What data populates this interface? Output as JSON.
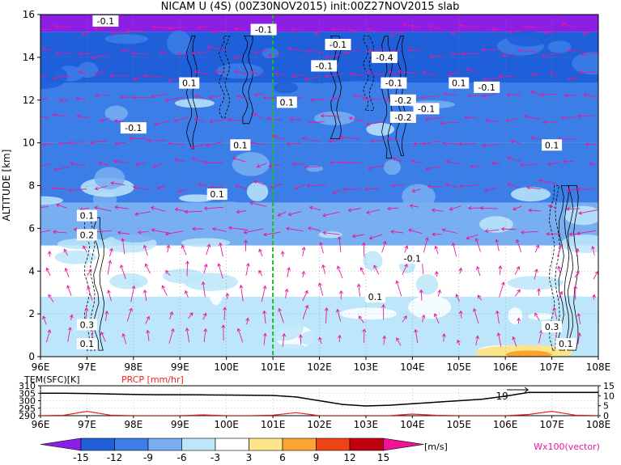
{
  "title": "NICAM U (4S) (00Z30NOV2015) init:00Z27NOV2015 slab",
  "colors": {
    "purple": "#8c1ee6",
    "blue_dark": "#1f5fd9",
    "blue_mid": "#3c7ee8",
    "blue_light": "#78aef2",
    "cyan_light": "#bde6fa",
    "white": "#ffffff",
    "yellow": "#fde689",
    "orange": "#fba531",
    "red": "#ee4415",
    "darkred": "#c0000f",
    "magenta": "#ee1493",
    "vector": "#e6199b",
    "temp_line": "#000000",
    "prcp_line": "#ee2222",
    "marker_line": "#22bb22"
  },
  "chart_data": [
    {
      "type": "heatmap",
      "title": "NICAM U (4S) (00Z30NOV2015) init:00Z27NOV2015 slab",
      "ylabel": "ALTITUDE [km]",
      "xlim": [
        96,
        108
      ],
      "ylim": [
        0,
        16
      ],
      "grid": true,
      "x_ticks": [
        "96E",
        "97E",
        "98E",
        "99E",
        "100E",
        "101E",
        "102E",
        "103E",
        "104E",
        "105E",
        "106E",
        "107E",
        "108E"
      ],
      "y_ticks": [
        "0",
        "2",
        "4",
        "6",
        "8",
        "10",
        "12",
        "14",
        "16"
      ],
      "vertical_marker_x": 101,
      "layers": [
        {
          "z_top": 16,
          "z_bottom": 15.2,
          "u_band": "<-15"
        },
        {
          "z_top": 15.2,
          "z_bottom": 12.8,
          "u_band": "-15 to -12"
        },
        {
          "z_top": 12.8,
          "z_bottom": 10.0,
          "u_band": "-12 to -9"
        },
        {
          "z_top": 10.0,
          "z_bottom": 7.2,
          "u_band": "-12 to -9"
        },
        {
          "z_top": 7.2,
          "z_bottom": 5.2,
          "u_band": "-9 to -6"
        },
        {
          "z_top": 5.2,
          "z_bottom": 2.8,
          "u_band": "-3 to 3"
        },
        {
          "z_top": 2.8,
          "z_bottom": 0,
          "u_band": "-6 to -3"
        }
      ],
      "contour_labels": [
        {
          "text": "-0.1",
          "x": 97.4,
          "y": 15.7
        },
        {
          "text": "-0.1",
          "x": 100.8,
          "y": 15.3
        },
        {
          "text": "-0.1",
          "x": 102.4,
          "y": 14.6
        },
        {
          "text": "-0.4",
          "x": 103.4,
          "y": 14.0
        },
        {
          "text": "-0.1",
          "x": 102.1,
          "y": 13.6
        },
        {
          "text": "0.1",
          "x": 99.2,
          "y": 12.8
        },
        {
          "text": "0.1",
          "x": 101.3,
          "y": 11.9
        },
        {
          "text": "-0.1",
          "x": 103.6,
          "y": 12.8
        },
        {
          "text": "-0.2",
          "x": 103.8,
          "y": 12.0
        },
        {
          "text": "0.1",
          "x": 105.0,
          "y": 12.8
        },
        {
          "text": "-0.1",
          "x": 105.6,
          "y": 12.6
        },
        {
          "text": "-0.1",
          "x": 104.3,
          "y": 11.6
        },
        {
          "text": "-0.2",
          "x": 103.8,
          "y": 11.2
        },
        {
          "text": "-0.1",
          "x": 98.0,
          "y": 10.7
        },
        {
          "text": "0.1",
          "x": 100.3,
          "y": 9.9
        },
        {
          "text": "0.1",
          "x": 107.0,
          "y": 9.9
        },
        {
          "text": "0.1",
          "x": 99.8,
          "y": 7.6
        },
        {
          "text": "0.1",
          "x": 97.0,
          "y": 6.6
        },
        {
          "text": "0.2",
          "x": 97.0,
          "y": 5.7
        },
        {
          "text": "-0.1",
          "x": 104.0,
          "y": 4.6
        },
        {
          "text": "0.1",
          "x": 103.2,
          "y": 2.8
        },
        {
          "text": "0.3",
          "x": 97.0,
          "y": 1.5
        },
        {
          "text": "0.1",
          "x": 97.0,
          "y": 0.6
        },
        {
          "text": "0.3",
          "x": 107.0,
          "y": 1.4
        },
        {
          "text": "0.1",
          "x": 107.3,
          "y": 0.6
        }
      ],
      "legend": {
        "levels": [
          "-15",
          "-12",
          "-9",
          "-6",
          "-3",
          "3",
          "6",
          "9",
          "12",
          "15"
        ],
        "unit": "[m/s]",
        "vector_label": "Wx100(vector)"
      }
    },
    {
      "type": "line",
      "x_ticks": [
        "96E",
        "97E",
        "98E",
        "99E",
        "100E",
        "101E",
        "102E",
        "103E",
        "104E",
        "105E",
        "106E",
        "107E",
        "108E"
      ],
      "xlim": [
        96,
        108
      ],
      "left_axis": {
        "label": "TEM(SFC)[K]",
        "ylim": [
          290,
          310
        ],
        "ticks": [
          "310",
          "305",
          "300",
          "295",
          "290"
        ]
      },
      "right_axis": {
        "label": "PRCP [mm/hr]",
        "ylim": [
          0,
          15
        ],
        "ticks": [
          "15",
          "10",
          "5",
          "0"
        ]
      },
      "annotation": {
        "text": "19",
        "x": 106.0
      },
      "series": [
        {
          "name": "TEM(SFC)[K]",
          "axis": "left",
          "x": [
            96,
            96.5,
            97,
            97.5,
            98,
            98.5,
            99,
            99.5,
            100,
            100.5,
            101,
            101.5,
            102,
            102.5,
            103,
            103.5,
            104,
            104.5,
            105,
            105.5,
            106,
            106.5,
            107,
            107.5,
            108
          ],
          "values": [
            305,
            305,
            304.8,
            304.5,
            304.2,
            304,
            304,
            303.9,
            303.8,
            303.6,
            303.5,
            302.5,
            300,
            297.5,
            296.5,
            297,
            298,
            299,
            300,
            301,
            303,
            305.5,
            305.5,
            305.5,
            305.5
          ]
        },
        {
          "name": "PRCP [mm/hr]",
          "axis": "right",
          "x": [
            96,
            96.5,
            97,
            97.5,
            98,
            98.5,
            99,
            99.5,
            100,
            100.5,
            101,
            101.5,
            102,
            102.5,
            103,
            103.5,
            104,
            104.5,
            105,
            105.5,
            106,
            106.5,
            107,
            107.5,
            108
          ],
          "values": [
            0,
            0.2,
            2.2,
            0.3,
            0,
            0,
            0,
            0.4,
            0,
            0,
            0.3,
            1.5,
            0,
            0,
            0,
            0,
            0.8,
            0.2,
            0,
            0,
            0,
            0.6,
            2.2,
            0.3,
            0
          ]
        }
      ]
    }
  ]
}
